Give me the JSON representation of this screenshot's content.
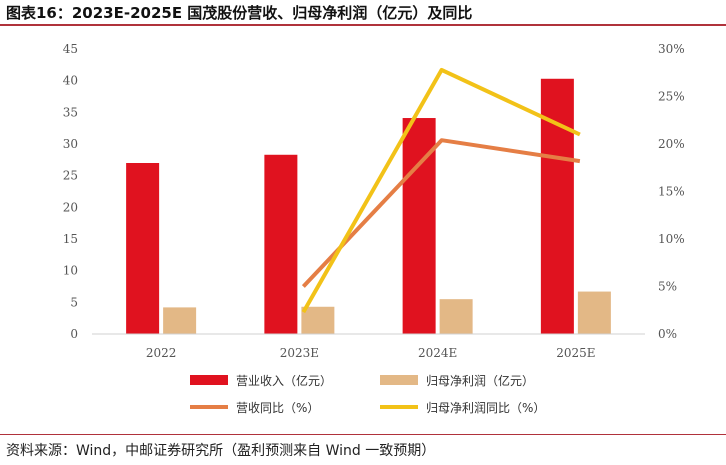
{
  "title": "图表16：2023E-2025E 国茂股份营收、归母净利润（亿元）及同比",
  "source": "资料来源：Wind，中邮证券研究所（盈利预测来自 Wind 一致预期）",
  "colors": {
    "revenue": "#e0121f",
    "profit": "#e3b886",
    "revenue_yoy": "#e57e45",
    "profit_yoy": "#f2c218",
    "rule": "#b0323b"
  },
  "chart_data": {
    "type": "bar",
    "categories": [
      "2022",
      "2023E",
      "2024E",
      "2025E"
    ],
    "y_left": {
      "min": 0,
      "max": 45,
      "step": 5
    },
    "y_right": {
      "min": 0,
      "max": 30,
      "step": 5,
      "unit": "%"
    },
    "series": [
      {
        "name": "营业收入（亿元）",
        "type": "bar",
        "axis": "left",
        "color": "#e0121f",
        "values": [
          27.0,
          28.3,
          34.1,
          40.3
        ]
      },
      {
        "name": "归母净利润（亿元）",
        "type": "bar",
        "axis": "left",
        "color": "#e3b886",
        "values": [
          4.2,
          4.3,
          5.5,
          6.7
        ]
      },
      {
        "name": "营收同比（%）",
        "type": "line",
        "axis": "right",
        "color": "#e57e45",
        "values": [
          null,
          5.0,
          20.4,
          18.2
        ]
      },
      {
        "name": "归母净利润同比（%）",
        "type": "line",
        "axis": "right",
        "color": "#f2c218",
        "values": [
          null,
          2.3,
          27.8,
          21.0
        ]
      }
    ],
    "legend_placement": "bottom",
    "grid": false
  }
}
